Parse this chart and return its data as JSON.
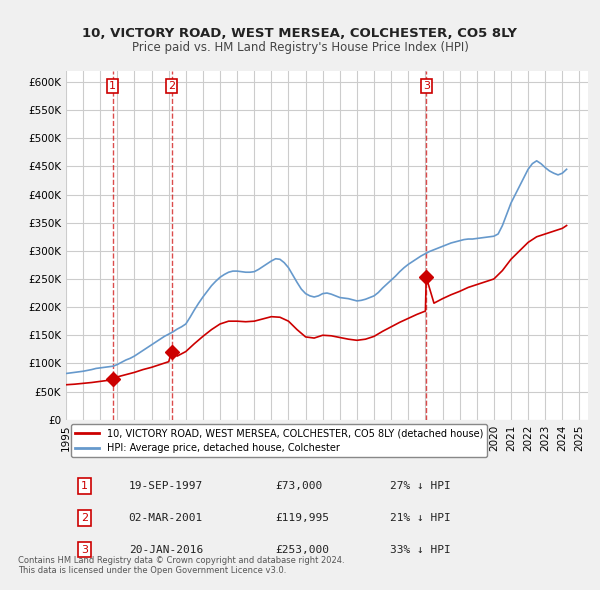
{
  "title1": "10, VICTORY ROAD, WEST MERSEA, COLCHESTER, CO5 8LY",
  "title2": "Price paid vs. HM Land Registry's House Price Index (HPI)",
  "ylabel_ticks": [
    "£0",
    "£50K",
    "£100K",
    "£150K",
    "£200K",
    "£250K",
    "£300K",
    "£350K",
    "£400K",
    "£450K",
    "£500K",
    "£550K",
    "£600K"
  ],
  "ytick_values": [
    0,
    50000,
    100000,
    150000,
    200000,
    250000,
    300000,
    350000,
    400000,
    450000,
    500000,
    550000,
    600000
  ],
  "xlim": [
    1995.0,
    2025.5
  ],
  "ylim": [
    0,
    620000
  ],
  "sale_dates": [
    1997.72,
    2001.17,
    2016.05
  ],
  "sale_prices": [
    73000,
    119995,
    253000
  ],
  "sale_labels": [
    "1",
    "2",
    "3"
  ],
  "legend_red": "10, VICTORY ROAD, WEST MERSEA, COLCHESTER, CO5 8LY (detached house)",
  "legend_blue": "HPI: Average price, detached house, Colchester",
  "table_data": [
    [
      "1",
      "19-SEP-1997",
      "£73,000",
      "27% ↓ HPI"
    ],
    [
      "2",
      "02-MAR-2001",
      "£119,995",
      "21% ↓ HPI"
    ],
    [
      "3",
      "20-JAN-2016",
      "£253,000",
      "33% ↓ HPI"
    ]
  ],
  "footer": "Contains HM Land Registry data © Crown copyright and database right 2024.\nThis data is licensed under the Open Government Licence v3.0.",
  "hpi_years": [
    1995.0,
    1995.25,
    1995.5,
    1995.75,
    1996.0,
    1996.25,
    1996.5,
    1996.75,
    1997.0,
    1997.25,
    1997.5,
    1997.75,
    1998.0,
    1998.25,
    1998.5,
    1998.75,
    1999.0,
    1999.25,
    1999.5,
    1999.75,
    2000.0,
    2000.25,
    2000.5,
    2000.75,
    2001.0,
    2001.25,
    2001.5,
    2001.75,
    2002.0,
    2002.25,
    2002.5,
    2002.75,
    2003.0,
    2003.25,
    2003.5,
    2003.75,
    2004.0,
    2004.25,
    2004.5,
    2004.75,
    2005.0,
    2005.25,
    2005.5,
    2005.75,
    2006.0,
    2006.25,
    2006.5,
    2006.75,
    2007.0,
    2007.25,
    2007.5,
    2007.75,
    2008.0,
    2008.25,
    2008.5,
    2008.75,
    2009.0,
    2009.25,
    2009.5,
    2009.75,
    2010.0,
    2010.25,
    2010.5,
    2010.75,
    2011.0,
    2011.25,
    2011.5,
    2011.75,
    2012.0,
    2012.25,
    2012.5,
    2012.75,
    2013.0,
    2013.25,
    2013.5,
    2013.75,
    2014.0,
    2014.25,
    2014.5,
    2014.75,
    2015.0,
    2015.25,
    2015.5,
    2015.75,
    2016.0,
    2016.25,
    2016.5,
    2016.75,
    2017.0,
    2017.25,
    2017.5,
    2017.75,
    2018.0,
    2018.25,
    2018.5,
    2018.75,
    2019.0,
    2019.25,
    2019.5,
    2019.75,
    2020.0,
    2020.25,
    2020.5,
    2020.75,
    2021.0,
    2021.25,
    2021.5,
    2021.75,
    2022.0,
    2022.25,
    2022.5,
    2022.75,
    2023.0,
    2023.25,
    2023.5,
    2023.75,
    2024.0,
    2024.25
  ],
  "hpi_values": [
    82000,
    83000,
    84000,
    85000,
    86000,
    87500,
    89000,
    91000,
    92000,
    93000,
    94000,
    95000,
    98000,
    102000,
    106000,
    109000,
    113000,
    118000,
    123000,
    128000,
    133000,
    138000,
    143000,
    148000,
    152000,
    156000,
    161000,
    165000,
    170000,
    182000,
    195000,
    207000,
    218000,
    228000,
    238000,
    246000,
    253000,
    258000,
    262000,
    264000,
    264000,
    263000,
    262000,
    262000,
    263000,
    267000,
    272000,
    277000,
    282000,
    286000,
    285000,
    279000,
    270000,
    257000,
    244000,
    232000,
    224000,
    220000,
    218000,
    220000,
    224000,
    225000,
    223000,
    220000,
    217000,
    216000,
    215000,
    213000,
    211000,
    212000,
    214000,
    217000,
    220000,
    226000,
    234000,
    241000,
    248000,
    255000,
    263000,
    270000,
    276000,
    281000,
    286000,
    291000,
    295000,
    299000,
    302000,
    305000,
    308000,
    311000,
    314000,
    316000,
    318000,
    320000,
    321000,
    321000,
    322000,
    323000,
    324000,
    325000,
    326000,
    330000,
    345000,
    365000,
    385000,
    400000,
    415000,
    430000,
    445000,
    455000,
    460000,
    455000,
    448000,
    442000,
    438000,
    435000,
    438000,
    445000
  ],
  "red_line_years": [
    1995.0,
    1995.5,
    1996.0,
    1996.5,
    1997.0,
    1997.5,
    1997.72,
    1998.0,
    1998.5,
    1999.0,
    1999.5,
    2000.0,
    2000.5,
    2001.0,
    2001.17,
    2001.5,
    2002.0,
    2002.5,
    2003.0,
    2003.5,
    2004.0,
    2004.5,
    2005.0,
    2005.5,
    2006.0,
    2006.5,
    2007.0,
    2007.5,
    2008.0,
    2008.5,
    2009.0,
    2009.5,
    2010.0,
    2010.5,
    2011.0,
    2011.5,
    2012.0,
    2012.5,
    2013.0,
    2013.5,
    2014.0,
    2014.5,
    2015.0,
    2015.5,
    2016.0,
    2016.05,
    2016.5,
    2017.0,
    2017.5,
    2018.0,
    2018.5,
    2019.0,
    2019.5,
    2020.0,
    2020.5,
    2021.0,
    2021.5,
    2022.0,
    2022.5,
    2023.0,
    2023.5,
    2024.0,
    2024.25
  ],
  "red_line_values": [
    62000,
    63000,
    64500,
    66000,
    68000,
    70000,
    73000,
    76000,
    80000,
    84000,
    89000,
    93000,
    98000,
    103000,
    119995,
    113000,
    121000,
    135000,
    148000,
    160000,
    170000,
    175000,
    175000,
    174000,
    175000,
    179000,
    183000,
    182000,
    175000,
    160000,
    147000,
    145000,
    150000,
    149000,
    146000,
    143000,
    141000,
    143000,
    148000,
    157000,
    165000,
    173000,
    180000,
    187000,
    193000,
    253000,
    207000,
    215000,
    222000,
    228000,
    235000,
    240000,
    245000,
    250000,
    265000,
    285000,
    300000,
    315000,
    325000,
    330000,
    335000,
    340000,
    345000
  ],
  "background_color": "#f0f0f0",
  "plot_bg_color": "#ffffff",
  "grid_color": "#cccccc",
  "red_color": "#cc0000",
  "blue_color": "#6699cc",
  "xtick_years": [
    1995,
    1996,
    1997,
    1998,
    1999,
    2000,
    2001,
    2002,
    2003,
    2004,
    2005,
    2006,
    2007,
    2008,
    2009,
    2010,
    2011,
    2012,
    2013,
    2014,
    2015,
    2016,
    2017,
    2018,
    2019,
    2020,
    2021,
    2022,
    2023,
    2024,
    2025
  ]
}
